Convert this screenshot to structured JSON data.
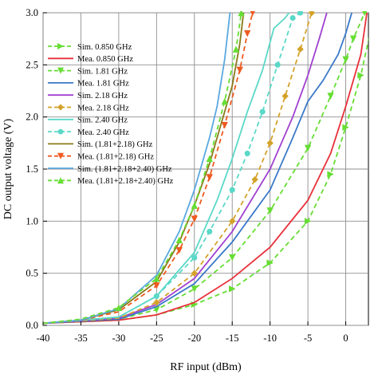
{
  "chart_data": {
    "type": "line",
    "xlabel": "RF input (dBm)",
    "ylabel": "DC output voltage (V)",
    "xlim": [
      -40,
      3
    ],
    "ylim": [
      0,
      3.0
    ],
    "x_ticks": [
      "-40",
      "-35",
      "-30",
      "-25",
      "-20",
      "-15",
      "-10",
      "-5",
      "0"
    ],
    "y_ticks": [
      "0.0",
      "0.5",
      "1.0",
      "1.5",
      "2.0",
      "2.5",
      "3.0"
    ],
    "grid": true,
    "legend_position": "top-left",
    "series": [
      {
        "name": "Sim. 0.850 GHz",
        "color": "#66dd33",
        "style": "dashed",
        "marker": "triangle-right",
        "points": [
          [
            -40,
            0.02
          ],
          [
            -30,
            0.05
          ],
          [
            -25,
            0.1
          ],
          [
            -20,
            0.2
          ],
          [
            -15,
            0.35
          ],
          [
            -10,
            0.6
          ],
          [
            -5,
            1.0
          ],
          [
            -2,
            1.45
          ],
          [
            0,
            1.9
          ],
          [
            2,
            2.4
          ],
          [
            3.5,
            2.9
          ]
        ]
      },
      {
        "name": "Mea. 0.850 GHz",
        "color": "#e8303a",
        "style": "solid",
        "marker": "none",
        "points": [
          [
            -40,
            0.02
          ],
          [
            -30,
            0.05
          ],
          [
            -25,
            0.1
          ],
          [
            -20,
            0.22
          ],
          [
            -15,
            0.45
          ],
          [
            -10,
            0.75
          ],
          [
            -5,
            1.2
          ],
          [
            -2,
            1.65
          ],
          [
            0,
            2.1
          ],
          [
            2,
            2.6
          ],
          [
            2.8,
            3.0
          ]
        ]
      },
      {
        "name": "Sim. 1.81 GHz",
        "color": "#66dd33",
        "style": "dashed",
        "marker": "triangle-down",
        "points": [
          [
            -40,
            0.02
          ],
          [
            -30,
            0.06
          ],
          [
            -25,
            0.15
          ],
          [
            -20,
            0.35
          ],
          [
            -15,
            0.65
          ],
          [
            -10,
            1.1
          ],
          [
            -5,
            1.7
          ],
          [
            -2,
            2.2
          ],
          [
            0,
            2.55
          ],
          [
            1,
            2.75
          ],
          [
            2.5,
            3.0
          ]
        ]
      },
      {
        "name": "Mea. 1.81 GHz",
        "color": "#3a78c8",
        "style": "solid",
        "marker": "none",
        "points": [
          [
            -40,
            0.02
          ],
          [
            -30,
            0.06
          ],
          [
            -25,
            0.18
          ],
          [
            -20,
            0.4
          ],
          [
            -15,
            0.8
          ],
          [
            -10,
            1.3
          ],
          [
            -7,
            1.8
          ],
          [
            -5,
            2.15
          ],
          [
            -3,
            2.35
          ],
          [
            -1,
            2.6
          ],
          [
            0,
            2.8
          ],
          [
            0.8,
            3.0
          ]
        ]
      },
      {
        "name": "Sim. 2.18 GHz",
        "color": "#a040d0",
        "style": "solid",
        "marker": "none",
        "points": [
          [
            -40,
            0.02
          ],
          [
            -30,
            0.07
          ],
          [
            -25,
            0.2
          ],
          [
            -20,
            0.45
          ],
          [
            -15,
            0.9
          ],
          [
            -10,
            1.5
          ],
          [
            -7,
            2.0
          ],
          [
            -5,
            2.4
          ],
          [
            -3.5,
            2.75
          ],
          [
            -2.5,
            3.0
          ]
        ]
      },
      {
        "name": "Mea. 2.18 GHz",
        "color": "#d4a22a",
        "style": "dashed",
        "marker": "diamond",
        "points": [
          [
            -40,
            0.02
          ],
          [
            -30,
            0.07
          ],
          [
            -25,
            0.22
          ],
          [
            -20,
            0.5
          ],
          [
            -15,
            1.0
          ],
          [
            -12,
            1.4
          ],
          [
            -10,
            1.75
          ],
          [
            -8,
            2.2
          ],
          [
            -6,
            2.65
          ],
          [
            -4.5,
            3.0
          ]
        ]
      },
      {
        "name": "Sim. 2.40 GHz",
        "color": "#5ad8c8",
        "style": "solid",
        "marker": "none",
        "points": [
          [
            -40,
            0.02
          ],
          [
            -30,
            0.08
          ],
          [
            -25,
            0.28
          ],
          [
            -20,
            0.7
          ],
          [
            -17,
            1.2
          ],
          [
            -15,
            1.6
          ],
          [
            -13,
            2.05
          ],
          [
            -11,
            2.45
          ],
          [
            -9.5,
            2.85
          ],
          [
            -8,
            2.95
          ],
          [
            -7.5,
            3.0
          ]
        ]
      },
      {
        "name": "Mea. 2.40 GHz",
        "color": "#5ad8c8",
        "style": "dashed",
        "marker": "circle",
        "points": [
          [
            -40,
            0.02
          ],
          [
            -30,
            0.08
          ],
          [
            -25,
            0.28
          ],
          [
            -20,
            0.65
          ],
          [
            -18,
            0.9
          ],
          [
            -15,
            1.3
          ],
          [
            -13,
            1.65
          ],
          [
            -11,
            2.05
          ],
          [
            -9,
            2.5
          ],
          [
            -7,
            2.95
          ],
          [
            -6,
            3.0
          ]
        ]
      },
      {
        "name": "Sim. (1.81+2.18) GHz",
        "color": "#8a7a1a",
        "style": "solid",
        "marker": "none",
        "points": [
          [
            -40,
            0.02
          ],
          [
            -35,
            0.05
          ],
          [
            -30,
            0.15
          ],
          [
            -25,
            0.42
          ],
          [
            -22,
            0.8
          ],
          [
            -20,
            1.15
          ],
          [
            -18,
            1.55
          ],
          [
            -16,
            2.05
          ],
          [
            -15,
            2.3
          ],
          [
            -14,
            2.7
          ],
          [
            -13.5,
            3.0
          ]
        ]
      },
      {
        "name": "Mea. (1.81+2.18) GHz",
        "color": "#ee5a20",
        "style": "dashed",
        "marker": "triangle-down",
        "points": [
          [
            -40,
            0.02
          ],
          [
            -35,
            0.05
          ],
          [
            -30,
            0.13
          ],
          [
            -25,
            0.38
          ],
          [
            -22,
            0.72
          ],
          [
            -20,
            1.02
          ],
          [
            -18,
            1.42
          ],
          [
            -16,
            1.92
          ],
          [
            -14,
            2.45
          ],
          [
            -13,
            2.8
          ],
          [
            -12.3,
            3.0
          ]
        ]
      },
      {
        "name": "Sim. (1.81+2.18+2.40) GHz",
        "color": "#5aa8e0",
        "style": "solid",
        "marker": "none",
        "points": [
          [
            -40,
            0.02
          ],
          [
            -35,
            0.05
          ],
          [
            -30,
            0.16
          ],
          [
            -25,
            0.48
          ],
          [
            -22,
            0.9
          ],
          [
            -20,
            1.3
          ],
          [
            -18,
            1.8
          ],
          [
            -17,
            2.1
          ],
          [
            -16,
            2.55
          ],
          [
            -15.3,
            3.0
          ]
        ]
      },
      {
        "name": "Mea. (1.81+2.18+2.40) GHz",
        "color": "#66dd33",
        "style": "dashed",
        "marker": "triangle-up",
        "points": [
          [
            -40,
            0.02
          ],
          [
            -35,
            0.06
          ],
          [
            -30,
            0.17
          ],
          [
            -25,
            0.45
          ],
          [
            -22,
            0.82
          ],
          [
            -20,
            1.15
          ],
          [
            -18,
            1.6
          ],
          [
            -16,
            2.15
          ],
          [
            -14.5,
            2.65
          ],
          [
            -13.8,
            3.0
          ]
        ]
      }
    ]
  }
}
